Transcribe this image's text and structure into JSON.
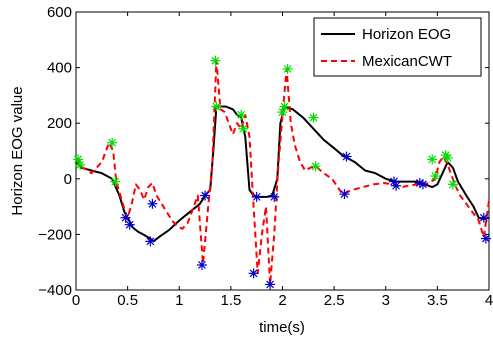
{
  "chart_data": {
    "type": "line",
    "title": "",
    "xlabel": "time(s)",
    "ylabel": "Horizon EOG value",
    "xlim": [
      0,
      4
    ],
    "ylim": [
      -400,
      600
    ],
    "xticks": [
      0,
      0.5,
      1,
      1.5,
      2,
      2.5,
      3,
      3.5,
      4
    ],
    "xtick_labels": [
      "0",
      "0.5",
      "1",
      "1.5",
      "2",
      "2.5",
      "3",
      "3.5",
      "4"
    ],
    "yticks": [
      -400,
      -200,
      0,
      200,
      400,
      600
    ],
    "ytick_labels": [
      "−400",
      "−200",
      "0",
      "200",
      "400",
      "600"
    ],
    "grid": false,
    "legend_position": "top-right",
    "series": [
      {
        "name": "Horizon EOG",
        "color": "#000000",
        "dash": "solid",
        "x": [
          0,
          0.05,
          0.15,
          0.25,
          0.35,
          0.42,
          0.47,
          0.5,
          0.55,
          0.6,
          0.65,
          0.72,
          0.75,
          0.82,
          0.9,
          1.0,
          1.1,
          1.2,
          1.25,
          1.3,
          1.33,
          1.36,
          1.45,
          1.52,
          1.56,
          1.6,
          1.64,
          1.68,
          1.72,
          1.76,
          1.85,
          1.9,
          1.95,
          1.98,
          2.02,
          2.1,
          2.2,
          2.3,
          2.4,
          2.5,
          2.58,
          2.7,
          2.8,
          2.9,
          3.0,
          3.1,
          3.2,
          3.3,
          3.38,
          3.45,
          3.5,
          3.55,
          3.6,
          3.65,
          3.7,
          3.78,
          3.85,
          3.9,
          3.95,
          4.0
        ],
        "values": [
          60,
          40,
          30,
          20,
          0,
          -60,
          -120,
          -140,
          -175,
          -190,
          -200,
          -215,
          -225,
          -205,
          -185,
          -150,
          -120,
          -90,
          -60,
          -40,
          100,
          260,
          260,
          250,
          230,
          220,
          150,
          -40,
          -60,
          -65,
          -65,
          -60,
          0,
          200,
          260,
          250,
          220,
          180,
          140,
          110,
          85,
          60,
          30,
          20,
          0,
          -10,
          -10,
          -10,
          -20,
          -30,
          -20,
          20,
          60,
          40,
          -10,
          -60,
          -100,
          -140,
          -145,
          -140
        ]
      },
      {
        "name": "MexicanCWT",
        "color": "#ff0000",
        "dash": "dashed",
        "x": [
          0,
          0.05,
          0.15,
          0.25,
          0.32,
          0.36,
          0.39,
          0.43,
          0.47,
          0.5,
          0.54,
          0.58,
          0.62,
          0.66,
          0.7,
          0.74,
          0.78,
          0.83,
          0.88,
          0.93,
          0.98,
          1.03,
          1.08,
          1.13,
          1.18,
          1.23,
          1.28,
          1.32,
          1.36,
          1.4,
          1.44,
          1.48,
          1.52,
          1.56,
          1.6,
          1.64,
          1.68,
          1.72,
          1.76,
          1.8,
          1.84,
          1.88,
          1.92,
          1.96,
          2.0,
          2.04,
          2.08,
          2.12,
          2.17,
          2.22,
          2.27,
          2.32,
          2.4,
          2.48,
          2.58,
          2.68,
          2.78,
          2.88,
          2.98,
          3.08,
          3.15,
          3.22,
          3.3,
          3.36,
          3.42,
          3.48,
          3.52,
          3.56,
          3.6,
          3.64,
          3.68,
          3.72,
          3.78,
          3.84,
          3.9,
          3.95,
          4.0
        ],
        "values": [
          75,
          45,
          20,
          60,
          130,
          100,
          -10,
          -60,
          -110,
          -140,
          -90,
          -20,
          -40,
          -75,
          -30,
          -15,
          -60,
          -90,
          -120,
          -150,
          -170,
          -180,
          -160,
          -110,
          -60,
          -305,
          -100,
          50,
          425,
          250,
          240,
          200,
          160,
          200,
          180,
          230,
          150,
          -100,
          -340,
          -200,
          -100,
          -380,
          -200,
          50,
          230,
          395,
          200,
          120,
          60,
          30,
          40,
          45,
          20,
          0,
          -55,
          -40,
          -30,
          -20,
          -15,
          -20,
          -30,
          -25,
          -20,
          -20,
          -15,
          0,
          60,
          80,
          50,
          10,
          -30,
          -60,
          -90,
          -120,
          -150,
          -210,
          -80
        ]
      }
    ],
    "markers": [
      {
        "color": "#00dd00",
        "symbol": "asterisk",
        "x": [
          0.02,
          0.04,
          0.35,
          0.38,
          1.35,
          1.36,
          1.6,
          1.62,
          2.0,
          2.02,
          2.05,
          2.3,
          2.32,
          3.45,
          3.48,
          3.58,
          3.6,
          3.65
        ],
        "y": [
          70,
          50,
          130,
          -10,
          425,
          260,
          230,
          180,
          240,
          260,
          395,
          220,
          45,
          70,
          10,
          85,
          75,
          -20
        ]
      },
      {
        "color": "#0000cc",
        "symbol": "asterisk",
        "x": [
          0.48,
          0.52,
          0.72,
          0.74,
          1.22,
          1.25,
          1.72,
          1.75,
          1.88,
          1.92,
          2.6,
          2.62,
          3.08,
          3.1,
          3.33,
          3.36,
          3.95,
          3.97
        ],
        "y": [
          -140,
          -165,
          -225,
          -90,
          -310,
          -60,
          -340,
          -65,
          -380,
          -65,
          -55,
          80,
          -10,
          -25,
          -15,
          -20,
          -140,
          -215
        ]
      }
    ]
  }
}
